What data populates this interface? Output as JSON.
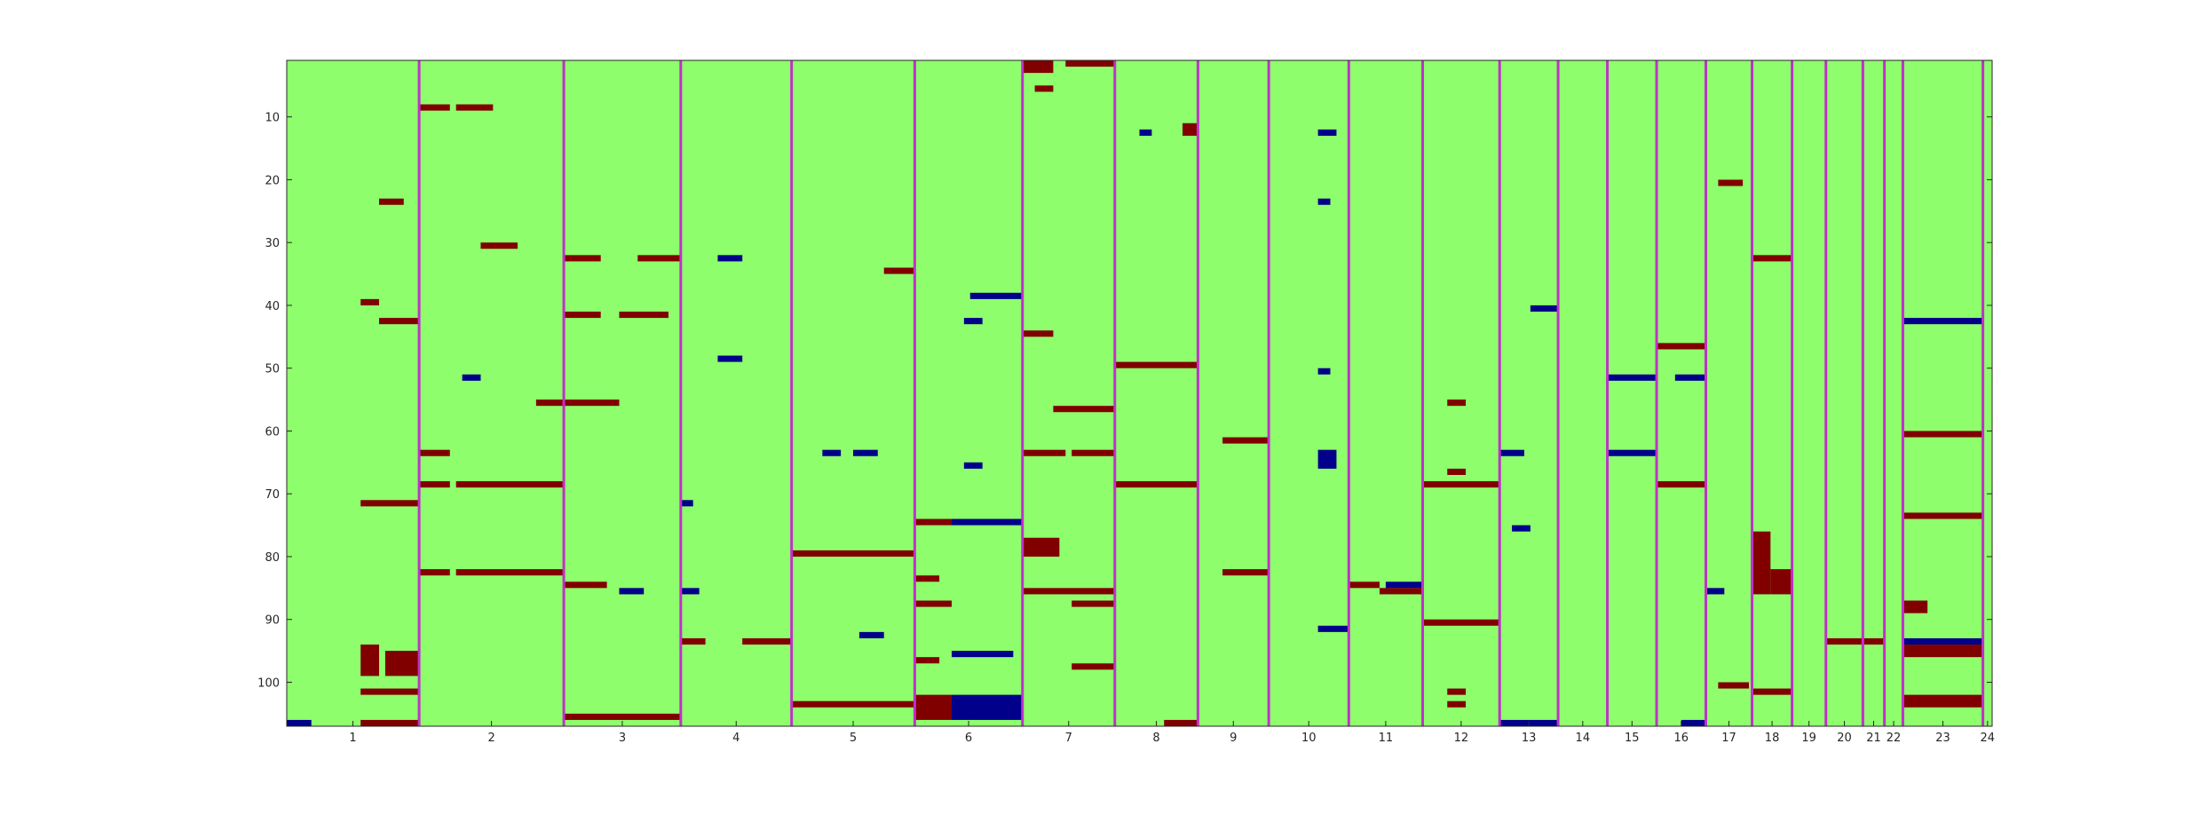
{
  "chart_data": {
    "type": "heatmap",
    "title": "",
    "xlabel": "",
    "ylabel": "",
    "ylim": [
      1,
      107
    ],
    "y_direction": "top-to-bottom",
    "y_ticks": [
      10,
      20,
      30,
      40,
      50,
      60,
      70,
      80,
      90,
      100
    ],
    "grid": false,
    "colors": {
      "background": "#8efe6c",
      "positive": "#800000",
      "negative": "#00008a",
      "divider": "#c031c9",
      "axis": "#262626"
    },
    "groups": [
      {
        "label": "1",
        "width": 21.5
      },
      {
        "label": "2",
        "width": 23.5
      },
      {
        "label": "3",
        "width": 19
      },
      {
        "label": "4",
        "width": 18
      },
      {
        "label": "5",
        "width": 20
      },
      {
        "label": "6",
        "width": 17.5
      },
      {
        "label": "7",
        "width": 15
      },
      {
        "label": "8",
        "width": 13.5
      },
      {
        "label": "9",
        "width": 11.5
      },
      {
        "label": "10",
        "width": 13
      },
      {
        "label": "11",
        "width": 12
      },
      {
        "label": "12",
        "width": 12.5
      },
      {
        "label": "13",
        "width": 9.5
      },
      {
        "label": "14",
        "width": 8
      },
      {
        "label": "15",
        "width": 8
      },
      {
        "label": "16",
        "width": 8
      },
      {
        "label": "17",
        "width": 7.5
      },
      {
        "label": "18",
        "width": 6.5
      },
      {
        "label": "19",
        "width": 5.5
      },
      {
        "label": "20",
        "width": 6
      },
      {
        "label": "21",
        "width": 3.5
      },
      {
        "label": "22",
        "width": 3
      },
      {
        "label": "23",
        "width": 13
      },
      {
        "label": "24",
        "width": 1.5
      }
    ],
    "cells": [
      {
        "g": 1,
        "x0": 0,
        "x1": 4,
        "y0": 106,
        "y1": 107,
        "v": -1
      },
      {
        "g": 1,
        "x0": 12,
        "x1": 15,
        "y0": 39,
        "y1": 40,
        "v": 1
      },
      {
        "g": 1,
        "x0": 15,
        "x1": 21.5,
        "y0": 42,
        "y1": 43,
        "v": 1
      },
      {
        "g": 1,
        "x0": 15,
        "x1": 19,
        "y0": 23,
        "y1": 24,
        "v": 1
      },
      {
        "g": 1,
        "x0": 12,
        "x1": 21.5,
        "y0": 71,
        "y1": 72,
        "v": 1
      },
      {
        "g": 1,
        "x0": 12,
        "x1": 15,
        "y0": 94,
        "y1": 99,
        "v": 1
      },
      {
        "g": 1,
        "x0": 16,
        "x1": 21.5,
        "y0": 95,
        "y1": 99,
        "v": 1
      },
      {
        "g": 1,
        "x0": 12,
        "x1": 21.5,
        "y0": 101,
        "y1": 102,
        "v": 1
      },
      {
        "g": 1,
        "x0": 12,
        "x1": 21.5,
        "y0": 106,
        "y1": 107,
        "v": 1
      },
      {
        "g": 2,
        "x0": 0,
        "x1": 5,
        "y0": 8,
        "y1": 9,
        "v": 1
      },
      {
        "g": 2,
        "x0": 6,
        "x1": 12,
        "y0": 8,
        "y1": 9,
        "v": 1
      },
      {
        "g": 2,
        "x0": 10,
        "x1": 16,
        "y0": 30,
        "y1": 31,
        "v": 1
      },
      {
        "g": 2,
        "x0": 7,
        "x1": 10,
        "y0": 51,
        "y1": 52,
        "v": -1
      },
      {
        "g": 2,
        "x0": 19,
        "x1": 23.5,
        "y0": 55,
        "y1": 56,
        "v": 1
      },
      {
        "g": 2,
        "x0": 0,
        "x1": 5,
        "y0": 63,
        "y1": 64,
        "v": 1
      },
      {
        "g": 2,
        "x0": 0,
        "x1": 5,
        "y0": 68,
        "y1": 69,
        "v": 1
      },
      {
        "g": 2,
        "x0": 6,
        "x1": 23.5,
        "y0": 68,
        "y1": 69,
        "v": 1
      },
      {
        "g": 2,
        "x0": 0,
        "x1": 5,
        "y0": 82,
        "y1": 83,
        "v": 1
      },
      {
        "g": 2,
        "x0": 6,
        "x1": 23.5,
        "y0": 82,
        "y1": 83,
        "v": 1
      },
      {
        "g": 3,
        "x0": 0,
        "x1": 6,
        "y0": 32,
        "y1": 33,
        "v": 1
      },
      {
        "g": 3,
        "x0": 12,
        "x1": 19,
        "y0": 32,
        "y1": 33,
        "v": 1
      },
      {
        "g": 3,
        "x0": 0,
        "x1": 6,
        "y0": 41,
        "y1": 42,
        "v": 1
      },
      {
        "g": 3,
        "x0": 9,
        "x1": 17,
        "y0": 41,
        "y1": 42,
        "v": 1
      },
      {
        "g": 3,
        "x0": 0,
        "x1": 9,
        "y0": 55,
        "y1": 56,
        "v": 1
      },
      {
        "g": 3,
        "x0": 0,
        "x1": 7,
        "y0": 84,
        "y1": 85,
        "v": 1
      },
      {
        "g": 3,
        "x0": 9,
        "x1": 13,
        "y0": 85,
        "y1": 86,
        "v": -1
      },
      {
        "g": 3,
        "x0": 0,
        "x1": 19,
        "y0": 105,
        "y1": 106,
        "v": 1
      },
      {
        "g": 4,
        "x0": 6,
        "x1": 10,
        "y0": 32,
        "y1": 33,
        "v": -1
      },
      {
        "g": 4,
        "x0": 6,
        "x1": 10,
        "y0": 48,
        "y1": 49,
        "v": -1
      },
      {
        "g": 4,
        "x0": 0,
        "x1": 2,
        "y0": 71,
        "y1": 72,
        "v": -1
      },
      {
        "g": 4,
        "x0": 0,
        "x1": 3,
        "y0": 85,
        "y1": 86,
        "v": -1
      },
      {
        "g": 4,
        "x0": 0,
        "x1": 4,
        "y0": 93,
        "y1": 94,
        "v": 1
      },
      {
        "g": 4,
        "x0": 10,
        "x1": 18,
        "y0": 93,
        "y1": 94,
        "v": 1
      },
      {
        "g": 5,
        "x0": 15,
        "x1": 20,
        "y0": 34,
        "y1": 35,
        "v": 1
      },
      {
        "g": 5,
        "x0": 5,
        "x1": 8,
        "y0": 63,
        "y1": 64,
        "v": -1
      },
      {
        "g": 5,
        "x0": 10,
        "x1": 14,
        "y0": 63,
        "y1": 64,
        "v": -1
      },
      {
        "g": 5,
        "x0": 0,
        "x1": 20,
        "y0": 79,
        "y1": 80,
        "v": 1
      },
      {
        "g": 5,
        "x0": 11,
        "x1": 15,
        "y0": 92,
        "y1": 93,
        "v": -1
      },
      {
        "g": 5,
        "x0": 0,
        "x1": 20,
        "y0": 103,
        "y1": 104,
        "v": 1
      },
      {
        "g": 6,
        "x0": 9,
        "x1": 17.5,
        "y0": 38,
        "y1": 39,
        "v": -1
      },
      {
        "g": 6,
        "x0": 8,
        "x1": 11,
        "y0": 42,
        "y1": 43,
        "v": -1
      },
      {
        "g": 6,
        "x0": 8,
        "x1": 11,
        "y0": 65,
        "y1": 66,
        "v": -1
      },
      {
        "g": 6,
        "x0": 0,
        "x1": 6,
        "y0": 74,
        "y1": 75,
        "v": 1
      },
      {
        "g": 6,
        "x0": 6,
        "x1": 17.5,
        "y0": 74,
        "y1": 75,
        "v": -1
      },
      {
        "g": 6,
        "x0": 0,
        "x1": 4,
        "y0": 83,
        "y1": 84,
        "v": 1
      },
      {
        "g": 6,
        "x0": 0,
        "x1": 6,
        "y0": 87,
        "y1": 88,
        "v": 1
      },
      {
        "g": 6,
        "x0": 6,
        "x1": 16,
        "y0": 95,
        "y1": 96,
        "v": -1
      },
      {
        "g": 6,
        "x0": 0,
        "x1": 4,
        "y0": 96,
        "y1": 97,
        "v": 1
      },
      {
        "g": 6,
        "x0": 0,
        "x1": 6,
        "y0": 102,
        "y1": 106,
        "v": 1
      },
      {
        "g": 6,
        "x0": 6,
        "x1": 17.5,
        "y0": 102,
        "y1": 106,
        "v": -1
      },
      {
        "g": 7,
        "x0": 0,
        "x1": 5,
        "y0": 1,
        "y1": 3,
        "v": 1
      },
      {
        "g": 7,
        "x0": 7,
        "x1": 15,
        "y0": 1,
        "y1": 2,
        "v": 1
      },
      {
        "g": 7,
        "x0": 2,
        "x1": 5,
        "y0": 5,
        "y1": 6,
        "v": 1
      },
      {
        "g": 7,
        "x0": 0,
        "x1": 5,
        "y0": 44,
        "y1": 45,
        "v": 1
      },
      {
        "g": 7,
        "x0": 5,
        "x1": 15,
        "y0": 56,
        "y1": 57,
        "v": 1
      },
      {
        "g": 7,
        "x0": 0,
        "x1": 7,
        "y0": 63,
        "y1": 64,
        "v": 1
      },
      {
        "g": 7,
        "x0": 8,
        "x1": 15,
        "y0": 63,
        "y1": 64,
        "v": 1
      },
      {
        "g": 7,
        "x0": 0,
        "x1": 6,
        "y0": 77,
        "y1": 80,
        "v": 1
      },
      {
        "g": 7,
        "x0": 0,
        "x1": 15,
        "y0": 85,
        "y1": 86,
        "v": 1
      },
      {
        "g": 7,
        "x0": 8,
        "x1": 15,
        "y0": 87,
        "y1": 88,
        "v": 1
      },
      {
        "g": 7,
        "x0": 8,
        "x1": 15,
        "y0": 97,
        "y1": 98,
        "v": 1
      },
      {
        "g": 8,
        "x0": 0,
        "x1": 13.5,
        "y0": 49,
        "y1": 50,
        "v": 1
      },
      {
        "g": 8,
        "x0": 0,
        "x1": 13.5,
        "y0": 68,
        "y1": 69,
        "v": 1
      },
      {
        "g": 8,
        "x0": 4,
        "x1": 6,
        "y0": 12,
        "y1": 13,
        "v": -1
      },
      {
        "g": 8,
        "x0": 11,
        "x1": 13.5,
        "y0": 11,
        "y1": 13,
        "v": 1
      },
      {
        "g": 8,
        "x0": 8,
        "x1": 13.5,
        "y0": 106,
        "y1": 107,
        "v": 1
      },
      {
        "g": 9,
        "x0": 4,
        "x1": 11.5,
        "y0": 61,
        "y1": 62,
        "v": 1
      },
      {
        "g": 9,
        "x0": 4,
        "x1": 11.5,
        "y0": 82,
        "y1": 83,
        "v": 1
      },
      {
        "g": 10,
        "x0": 8,
        "x1": 11,
        "y0": 63,
        "y1": 66,
        "v": -1
      },
      {
        "g": 10,
        "x0": 8,
        "x1": 13,
        "y0": 91,
        "y1": 92,
        "v": -1
      },
      {
        "g": 10,
        "x0": 8,
        "x1": 11,
        "y0": 12,
        "y1": 13,
        "v": -1
      },
      {
        "g": 10,
        "x0": 8,
        "x1": 10,
        "y0": 23,
        "y1": 24,
        "v": -1
      },
      {
        "g": 10,
        "x0": 8,
        "x1": 10,
        "y0": 50,
        "y1": 51,
        "v": -1
      },
      {
        "g": 11,
        "x0": 0,
        "x1": 5,
        "y0": 84,
        "y1": 85,
        "v": 1
      },
      {
        "g": 11,
        "x0": 6,
        "x1": 12,
        "y0": 84,
        "y1": 85,
        "v": -1
      },
      {
        "g": 11,
        "x0": 5,
        "x1": 12,
        "y0": 85,
        "y1": 86,
        "v": 1
      },
      {
        "g": 12,
        "x0": 0,
        "x1": 12.5,
        "y0": 68,
        "y1": 69,
        "v": 1
      },
      {
        "g": 12,
        "x0": 0,
        "x1": 12.5,
        "y0": 90,
        "y1": 91,
        "v": 1
      },
      {
        "g": 12,
        "x0": 4,
        "x1": 7,
        "y0": 55,
        "y1": 56,
        "v": 1
      },
      {
        "g": 12,
        "x0": 4,
        "x1": 7,
        "y0": 66,
        "y1": 67,
        "v": 1
      },
      {
        "g": 12,
        "x0": 4,
        "x1": 7,
        "y0": 101,
        "y1": 102,
        "v": 1
      },
      {
        "g": 12,
        "x0": 4,
        "x1": 7,
        "y0": 103,
        "y1": 104,
        "v": 1
      },
      {
        "g": 13,
        "x0": 0,
        "x1": 4,
        "y0": 63,
        "y1": 64,
        "v": -1
      },
      {
        "g": 13,
        "x0": 5,
        "x1": 9.5,
        "y0": 40,
        "y1": 41,
        "v": -1
      },
      {
        "g": 13,
        "x0": 2,
        "x1": 5,
        "y0": 75,
        "y1": 76,
        "v": -1
      },
      {
        "g": 13,
        "x0": 0,
        "x1": 9.5,
        "y0": 106,
        "y1": 107,
        "v": -1
      },
      {
        "g": 15,
        "x0": 0,
        "x1": 8,
        "y0": 51,
        "y1": 52,
        "v": -1
      },
      {
        "g": 15,
        "x0": 0,
        "x1": 8,
        "y0": 63,
        "y1": 64,
        "v": -1
      },
      {
        "g": 16,
        "x0": 0,
        "x1": 8,
        "y0": 46,
        "y1": 47,
        "v": 1
      },
      {
        "g": 16,
        "x0": 0,
        "x1": 8,
        "y0": 68,
        "y1": 69,
        "v": 1
      },
      {
        "g": 16,
        "x0": 3,
        "x1": 8,
        "y0": 51,
        "y1": 52,
        "v": -1
      },
      {
        "g": 16,
        "x0": 4,
        "x1": 8,
        "y0": 106,
        "y1": 107,
        "v": -1
      },
      {
        "g": 17,
        "x0": 0,
        "x1": 3,
        "y0": 85,
        "y1": 86,
        "v": -1
      },
      {
        "g": 17,
        "x0": 2,
        "x1": 6,
        "y0": 20,
        "y1": 21,
        "v": 1
      },
      {
        "g": 17,
        "x0": 2,
        "x1": 7,
        "y0": 100,
        "y1": 101,
        "v": 1
      },
      {
        "g": 18,
        "x0": 0,
        "x1": 6.5,
        "y0": 32,
        "y1": 33,
        "v": 1
      },
      {
        "g": 18,
        "x0": 0,
        "x1": 3,
        "y0": 76,
        "y1": 86,
        "v": 1
      },
      {
        "g": 18,
        "x0": 3,
        "x1": 6.5,
        "y0": 82,
        "y1": 86,
        "v": 1
      },
      {
        "g": 18,
        "x0": 0,
        "x1": 6.5,
        "y0": 101,
        "y1": 102,
        "v": 1
      },
      {
        "g": 20,
        "x0": 0,
        "x1": 6,
        "y0": 93,
        "y1": 94,
        "v": 1
      },
      {
        "g": 21,
        "x0": 0,
        "x1": 3.5,
        "y0": 93,
        "y1": 94,
        "v": 1
      },
      {
        "g": 23,
        "x0": 0,
        "x1": 13,
        "y0": 60,
        "y1": 61,
        "v": 1
      },
      {
        "g": 23,
        "x0": 0,
        "x1": 13,
        "y0": 73,
        "y1": 74,
        "v": 1
      },
      {
        "g": 23,
        "x0": 0,
        "x1": 13,
        "y0": 42,
        "y1": 43,
        "v": -1
      },
      {
        "g": 23,
        "x0": 0,
        "x1": 13,
        "y0": 93,
        "y1": 94,
        "v": -1
      },
      {
        "g": 23,
        "x0": 0,
        "x1": 13,
        "y0": 94,
        "y1": 96,
        "v": 1
      },
      {
        "g": 23,
        "x0": 0,
        "x1": 13,
        "y0": 102,
        "y1": 104,
        "v": 1
      },
      {
        "g": 23,
        "x0": 0,
        "x1": 4,
        "y0": 87,
        "y1": 89,
        "v": 1
      }
    ]
  }
}
